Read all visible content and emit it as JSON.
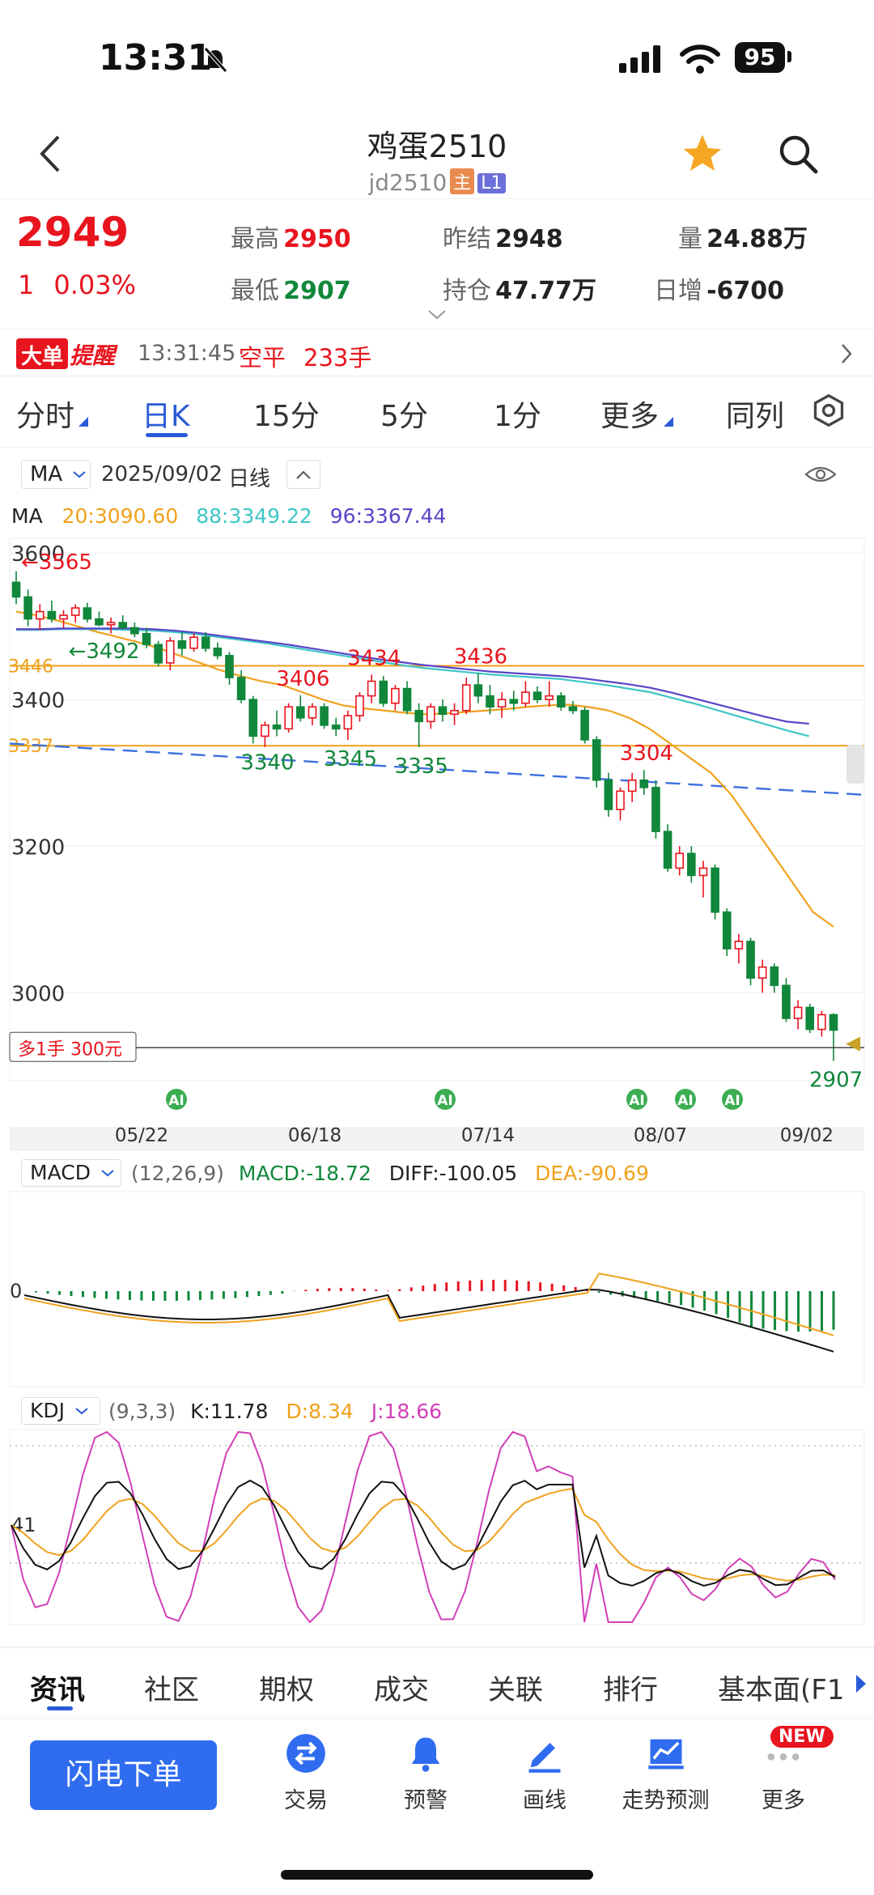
{
  "status_bar": {
    "time": "13:31",
    "battery": "95"
  },
  "header": {
    "title": "鸡蛋2510",
    "code": "jd2510",
    "tag_main": "主",
    "tag_level": "L1"
  },
  "quote": {
    "price": "2949",
    "change": "1",
    "change_pct": "0.03%",
    "high_label": "最高",
    "high": "2950",
    "low_label": "最低",
    "low": "2907",
    "prev_settle_label": "昨结",
    "prev_settle": "2948",
    "open_interest_label": "持仓",
    "open_interest": "47.77万",
    "volume_label": "量",
    "volume": "24.88万",
    "daily_change_label": "日增",
    "daily_change": "-6700"
  },
  "alert": {
    "badge": "大单",
    "badge2": "提醒",
    "time": "13:31:45",
    "type": "空平",
    "qty": "233手"
  },
  "period_tabs": [
    "分时",
    "日K",
    "15分",
    "5分",
    "1分",
    "更多",
    "同列"
  ],
  "chart_toolbar": {
    "indicator": "MA",
    "date": "2025/09/02",
    "period": "日线"
  },
  "ma_legend": {
    "name": "MA",
    "ma20": "20:3090.60",
    "ma88": "88:3349.22",
    "ma96": "96:3367.44"
  },
  "colors": {
    "red": "#e8141e",
    "green": "#10873a",
    "blue": "#2a5bd7",
    "orange": "#f0a11c",
    "cyan": "#3ec6c6",
    "purple": "#5b44c9",
    "magenta": "#d23fb8"
  },
  "chart_data": [
    {
      "type": "candlestick",
      "ylabels": [
        "3600",
        "3400",
        "3200",
        "3000"
      ],
      "ylim": [
        2880,
        3620
      ],
      "x_ticks": [
        "05/22",
        "06/18",
        "07/14",
        "08/07",
        "09/02"
      ],
      "annotations": [
        "3565",
        "3492",
        "3406",
        "3434",
        "3436",
        "3340",
        "3345",
        "3335",
        "3304",
        "2907"
      ],
      "hlines": [
        "3446",
        "3337"
      ],
      "position_label": "多1手 300元",
      "ma_series": [
        {
          "name": "20",
          "color": "orange",
          "values": [
            3520,
            3515,
            3508,
            3500,
            3492,
            3485,
            3478,
            3470,
            3460,
            3450,
            3440,
            3432,
            3425,
            3420,
            3410,
            3400,
            3392,
            3388,
            3385,
            3382,
            3380,
            3381,
            3383,
            3385,
            3387,
            3390,
            3392,
            3393,
            3390,
            3385,
            3375,
            3360,
            3340,
            3320,
            3300,
            3270,
            3230,
            3190,
            3150,
            3110,
            3090
          ]
        },
        {
          "name": "88",
          "color": "cyan",
          "values": [
            3495,
            3495,
            3496,
            3496,
            3496,
            3495,
            3494,
            3492,
            3489,
            3485,
            3481,
            3477,
            3472,
            3467,
            3462,
            3457,
            3452,
            3447,
            3443,
            3440,
            3437,
            3434,
            3432,
            3430,
            3428,
            3424,
            3420,
            3415,
            3410,
            3402,
            3394,
            3385,
            3376,
            3367,
            3358,
            3350
          ]
        },
        {
          "name": "96",
          "color": "purple",
          "values": [
            3496,
            3496,
            3497,
            3497,
            3497,
            3497,
            3496,
            3494,
            3491,
            3487,
            3483,
            3479,
            3475,
            3470,
            3465,
            3460,
            3455,
            3451,
            3447,
            3444,
            3441,
            3438,
            3436,
            3434,
            3432,
            3429,
            3425,
            3421,
            3416,
            3409,
            3401,
            3393,
            3385,
            3377,
            3370,
            3367
          ]
        }
      ],
      "candles": [
        [
          3560,
          3575,
          3530,
          3540
        ],
        [
          3540,
          3550,
          3500,
          3510
        ],
        [
          3510,
          3530,
          3495,
          3520
        ],
        [
          3520,
          3535,
          3505,
          3510
        ],
        [
          3510,
          3522,
          3498,
          3515
        ],
        [
          3515,
          3530,
          3505,
          3525
        ],
        [
          3525,
          3532,
          3505,
          3510
        ],
        [
          3510,
          3520,
          3500,
          3502
        ],
        [
          3502,
          3512,
          3490,
          3505
        ],
        [
          3505,
          3515,
          3495,
          3498
        ],
        [
          3498,
          3505,
          3485,
          3490
        ],
        [
          3490,
          3498,
          3470,
          3475
        ],
        [
          3475,
          3480,
          3445,
          3450
        ],
        [
          3450,
          3485,
          3440,
          3480
        ],
        [
          3480,
          3492,
          3460,
          3470
        ],
        [
          3470,
          3490,
          3465,
          3485
        ],
        [
          3485,
          3492,
          3465,
          3470
        ],
        [
          3470,
          3478,
          3455,
          3460
        ],
        [
          3460,
          3465,
          3420,
          3430
        ],
        [
          3430,
          3440,
          3395,
          3400
        ],
        [
          3400,
          3405,
          3340,
          3350
        ],
        [
          3350,
          3370,
          3335,
          3365
        ],
        [
          3365,
          3385,
          3350,
          3360
        ],
        [
          3360,
          3395,
          3355,
          3390
        ],
        [
          3390,
          3406,
          3370,
          3375
        ],
        [
          3375,
          3395,
          3365,
          3390
        ],
        [
          3390,
          3395,
          3360,
          3365
        ],
        [
          3365,
          3375,
          3350,
          3360
        ],
        [
          3360,
          3385,
          3345,
          3378
        ],
        [
          3378,
          3410,
          3370,
          3405
        ],
        [
          3405,
          3434,
          3395,
          3425
        ],
        [
          3425,
          3432,
          3390,
          3395
        ],
        [
          3395,
          3420,
          3385,
          3415
        ],
        [
          3415,
          3425,
          3380,
          3385
        ],
        [
          3385,
          3395,
          3335,
          3370
        ],
        [
          3370,
          3395,
          3360,
          3390
        ],
        [
          3390,
          3400,
          3370,
          3380
        ],
        [
          3380,
          3395,
          3365,
          3385
        ],
        [
          3385,
          3430,
          3380,
          3420
        ],
        [
          3420,
          3436,
          3395,
          3405
        ],
        [
          3405,
          3420,
          3380,
          3390
        ],
        [
          3390,
          3410,
          3375,
          3400
        ],
        [
          3400,
          3412,
          3385,
          3395
        ],
        [
          3395,
          3425,
          3390,
          3410
        ],
        [
          3410,
          3418,
          3395,
          3400
        ],
        [
          3400,
          3425,
          3390,
          3405
        ],
        [
          3405,
          3410,
          3385,
          3390
        ],
        [
          3390,
          3398,
          3380,
          3385
        ],
        [
          3385,
          3390,
          3340,
          3345
        ],
        [
          3345,
          3350,
          3280,
          3290
        ],
        [
          3290,
          3300,
          3240,
          3250
        ],
        [
          3250,
          3280,
          3235,
          3275
        ],
        [
          3275,
          3300,
          3260,
          3290
        ],
        [
          3290,
          3304,
          3270,
          3280
        ],
        [
          3280,
          3290,
          3210,
          3220
        ],
        [
          3220,
          3230,
          3165,
          3170
        ],
        [
          3170,
          3200,
          3160,
          3190
        ],
        [
          3190,
          3200,
          3150,
          3160
        ],
        [
          3160,
          3180,
          3130,
          3170
        ],
        [
          3170,
          3175,
          3100,
          3110
        ],
        [
          3110,
          3115,
          3050,
          3060
        ],
        [
          3060,
          3080,
          3040,
          3070
        ],
        [
          3070,
          3075,
          3010,
          3020
        ],
        [
          3020,
          3045,
          3000,
          3035
        ],
        [
          3035,
          3040,
          3000,
          3010
        ],
        [
          3010,
          3020,
          2960,
          2965
        ],
        [
          2965,
          2990,
          2950,
          2980
        ],
        [
          2980,
          2985,
          2945,
          2950
        ],
        [
          2950,
          2975,
          2940,
          2970
        ],
        [
          2970,
          2972,
          2907,
          2949
        ]
      ]
    },
    {
      "type": "bar",
      "name": "MACD",
      "params": "(12,26,9)",
      "macd_label": "MACD:-18.72",
      "diff_label": "DIFF:-100.05",
      "dea_label": "DEA:-90.69",
      "zero_label": "0"
    },
    {
      "type": "line",
      "name": "KDJ",
      "params": "(9,3,3)",
      "k_label": "K:11.78",
      "d_label": "D:8.34",
      "j_label": "J:18.66",
      "y_label": "41"
    }
  ],
  "ai_badges": [
    "AI",
    "AI",
    "AI",
    "AI",
    "AI"
  ],
  "bottom_tabs": [
    "资讯",
    "社区",
    "期权",
    "成交",
    "关联",
    "排行",
    "基本面(F1"
  ],
  "dock": {
    "order_button": "闪电下单",
    "items": [
      "交易",
      "预警",
      "画线",
      "走势预测",
      "更多"
    ],
    "new_badge": "NEW"
  }
}
